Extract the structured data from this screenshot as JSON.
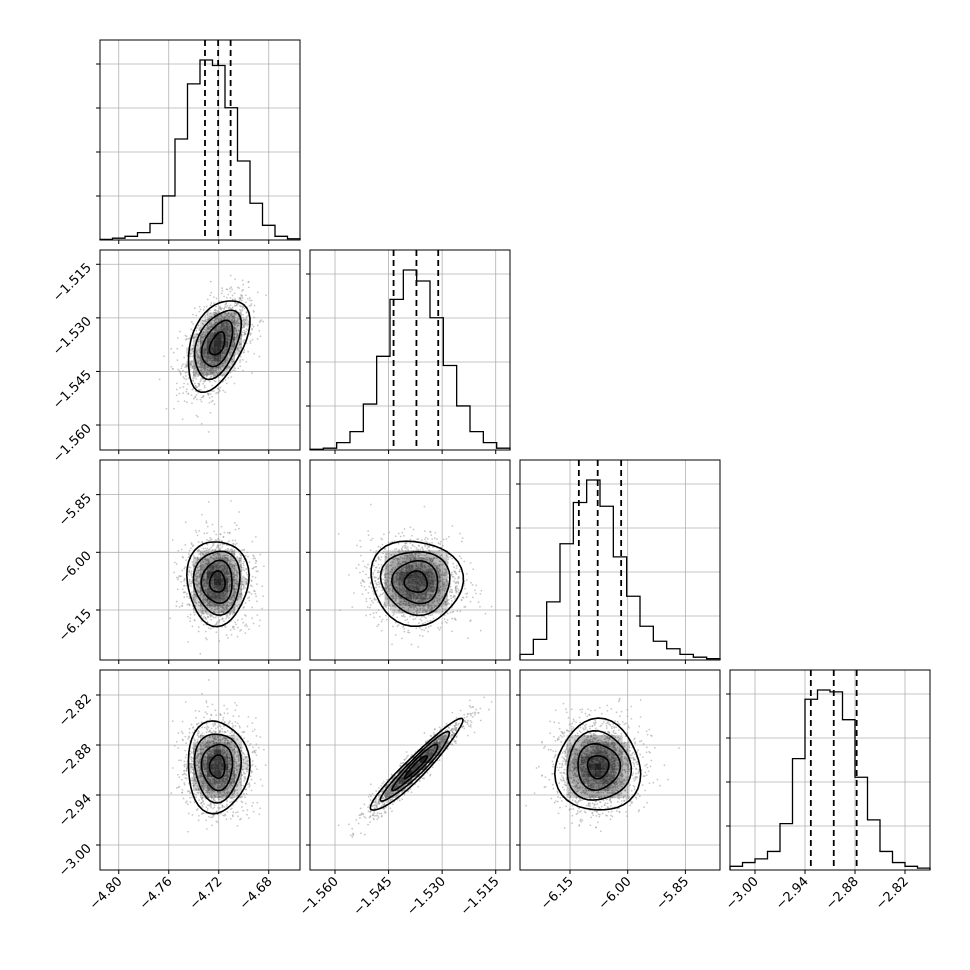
{
  "figure": {
    "type": "corner-plot",
    "background": "#ffffff"
  },
  "colors": {
    "frame": "#000000",
    "grid": "#b0b0b0",
    "points": "#9a9a9a",
    "density": "#000000",
    "contour": "#000000"
  },
  "chart_data": {
    "type": "corner",
    "grid": true,
    "parameters": [
      {
        "range": [
          -4.815,
          -4.655
        ],
        "ticks": [
          -4.8,
          -4.76,
          -4.72,
          -4.68
        ],
        "tick_labels": [
          "−4.80",
          "−4.76",
          "−4.72",
          "−4.68"
        ],
        "quantiles": [
          -4.731,
          -4.7205,
          -4.7105
        ],
        "mean": -4.721,
        "std": 0.0123
      },
      {
        "range": [
          -1.567,
          -1.511
        ],
        "ticks": [
          -1.56,
          -1.545,
          -1.53,
          -1.515
        ],
        "tick_labels": [
          "−1.560",
          "−1.545",
          "−1.530",
          "−1.515"
        ],
        "quantiles": [
          -1.5436,
          -1.5372,
          -1.5311
        ],
        "mean": -1.5373,
        "std": 0.0064
      },
      {
        "range": [
          -6.28,
          -5.76
        ],
        "ticks": [
          -6.15,
          -6.0,
          -5.85
        ],
        "tick_labels": [
          "−6.15",
          "−6.00",
          "−5.85"
        ],
        "quantiles": [
          -6.127,
          -6.078,
          -6.017
        ],
        "mean": -6.077,
        "std": 0.055
      },
      {
        "range": [
          -3.03,
          -2.79
        ],
        "ticks": [
          -3.0,
          -2.94,
          -2.88,
          -2.82
        ],
        "tick_labels": [
          "−3.00",
          "−2.94",
          "−2.88",
          "−2.82"
        ],
        "quantiles": [
          -2.933,
          -2.9055,
          -2.878
        ],
        "mean": -2.906,
        "std": 0.0275
      }
    ],
    "histograms": [
      [
        0.003,
        0.01,
        0.02,
        0.04,
        0.09,
        0.24,
        0.55,
        0.85,
        0.98,
        0.95,
        0.72,
        0.43,
        0.2,
        0.08,
        0.02,
        0.007
      ],
      [
        0.004,
        0.01,
        0.04,
        0.1,
        0.25,
        0.51,
        0.82,
        0.98,
        0.92,
        0.72,
        0.46,
        0.24,
        0.1,
        0.04,
        0.01
      ],
      [
        0.03,
        0.11,
        0.31,
        0.62,
        0.84,
        0.96,
        0.82,
        0.55,
        0.34,
        0.18,
        0.1,
        0.06,
        0.03,
        0.015,
        0.007
      ],
      [
        0.02,
        0.04,
        0.06,
        0.1,
        0.25,
        0.6,
        0.92,
        0.97,
        0.96,
        0.81,
        0.5,
        0.27,
        0.1,
        0.04,
        0.02,
        0.01
      ]
    ],
    "correlations": {
      "1-0": 0.45,
      "2-0": 0.0,
      "3-0": 0.0,
      "2-1": -0.05,
      "3-1": 0.95,
      "3-2": 0.0
    },
    "contour_levels": [
      0.5,
      1.0,
      1.5,
      2.0
    ]
  }
}
